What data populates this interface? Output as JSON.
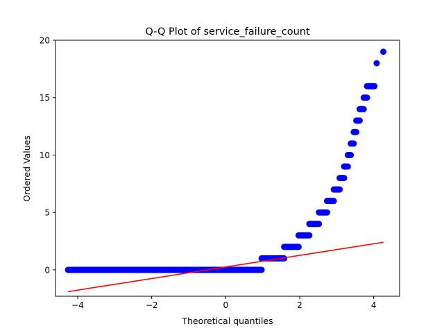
{
  "chart_data": {
    "type": "scatter",
    "title": "Q-Q Plot of service_failure_count",
    "xlabel": "Theoretical quantiles",
    "ylabel": "Ordered Values",
    "xlim": [
      -4.6,
      4.7
    ],
    "ylim": [
      -2.3,
      20.0
    ],
    "xticks": [
      -4,
      -2,
      0,
      2,
      4
    ],
    "yticks": [
      0,
      5,
      10,
      15,
      20
    ],
    "grid": false,
    "colors": {
      "points": "#0000ff",
      "fit_line": "#ff0000"
    },
    "series": [
      {
        "kind": "steps",
        "steps": [
          {
            "y": 0,
            "x_start": -4.26,
            "x_end": 0.97
          },
          {
            "y": 1,
            "x_start": 0.97,
            "x_end": 1.58
          },
          {
            "y": 2,
            "x_start": 1.58,
            "x_end": 1.97
          },
          {
            "y": 3,
            "x_start": 1.97,
            "x_end": 2.26
          },
          {
            "y": 4,
            "x_start": 2.26,
            "x_end": 2.52
          },
          {
            "y": 5,
            "x_start": 2.52,
            "x_end": 2.74
          },
          {
            "y": 6,
            "x_start": 2.74,
            "x_end": 2.92
          },
          {
            "y": 7,
            "x_start": 2.92,
            "x_end": 3.08
          },
          {
            "y": 8,
            "x_start": 3.08,
            "x_end": 3.2
          },
          {
            "y": 9,
            "x_start": 3.2,
            "x_end": 3.3
          },
          {
            "y": 10,
            "x_start": 3.3,
            "x_end": 3.38
          },
          {
            "y": 11,
            "x_start": 3.38,
            "x_end": 3.46
          },
          {
            "y": 12,
            "x_start": 3.46,
            "x_end": 3.53
          },
          {
            "y": 13,
            "x_start": 3.53,
            "x_end": 3.62
          },
          {
            "y": 14,
            "x_start": 3.62,
            "x_end": 3.73
          },
          {
            "y": 15,
            "x_start": 3.73,
            "x_end": 3.82
          },
          {
            "y": 16,
            "x_start": 3.82,
            "x_end": 4.02
          }
        ],
        "points": [
          {
            "x": -4.26,
            "y": 0
          },
          {
            "x": -4.07,
            "y": 0
          },
          {
            "x": 4.08,
            "y": 18
          },
          {
            "x": 4.26,
            "y": 19
          }
        ]
      },
      {
        "kind": "line",
        "x": [
          -4.26,
          4.26
        ],
        "y": [
          -1.9,
          2.4
        ]
      }
    ]
  }
}
